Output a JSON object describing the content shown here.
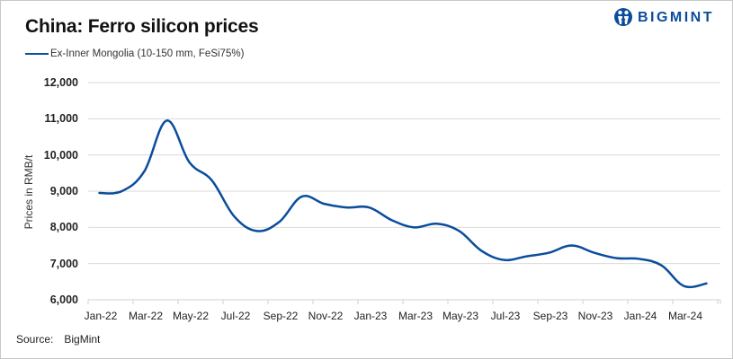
{
  "header": {
    "title": "China: Ferro silicon prices",
    "logo_text": "BIGMINT",
    "logo_icon": "bigmint-people-icon"
  },
  "legend": {
    "items": [
      {
        "label": "Ex-Inner Mongolia (10-150 mm, FeSi75%)",
        "color": "#0a4d9c"
      }
    ]
  },
  "axes": {
    "ylabel": "Prices in RMB/t",
    "yticks": [
      "12,000",
      "11,000",
      "10,000",
      "9,000",
      "8,000",
      "7,000",
      "6,000"
    ],
    "xticks": [
      "Jan-22",
      "Mar-22",
      "May-22",
      "Jul-22",
      "Sep-22",
      "Nov-22",
      "Jan-23",
      "Mar-23",
      "May-23",
      "Jul-23",
      "Sep-23",
      "Nov-23",
      "Jan-24",
      "Mar-24"
    ]
  },
  "footer": {
    "source_label": "Source:",
    "source_value": "BigMint"
  },
  "chart_data": {
    "type": "line",
    "title": "China: Ferro silicon prices",
    "xlabel": "",
    "ylabel": "Prices in RMB/t",
    "ylim": [
      6000,
      12000
    ],
    "grid": true,
    "legend_position": "top-left",
    "x": [
      "Jan-22",
      "Feb-22",
      "Mar-22",
      "Apr-22",
      "May-22",
      "Jun-22",
      "Jul-22",
      "Aug-22",
      "Sep-22",
      "Oct-22",
      "Nov-22",
      "Dec-22",
      "Jan-23",
      "Feb-23",
      "Mar-23",
      "Apr-23",
      "May-23",
      "Jun-23",
      "Jul-23",
      "Aug-23",
      "Sep-23",
      "Oct-23",
      "Nov-23",
      "Dec-23",
      "Jan-24",
      "Feb-24",
      "Mar-24",
      "Apr-24"
    ],
    "series": [
      {
        "name": "Ex-Inner Mongolia (10-150 mm, FeSi75%)",
        "color": "#0a4d9c",
        "values": [
          8950,
          9000,
          9550,
          10950,
          9800,
          9300,
          8300,
          7900,
          8150,
          8850,
          8650,
          8550,
          8550,
          8200,
          8000,
          8100,
          7900,
          7350,
          7100,
          7200,
          7300,
          7500,
          7300,
          7150,
          7130,
          6950,
          6380,
          6450
        ]
      }
    ]
  }
}
